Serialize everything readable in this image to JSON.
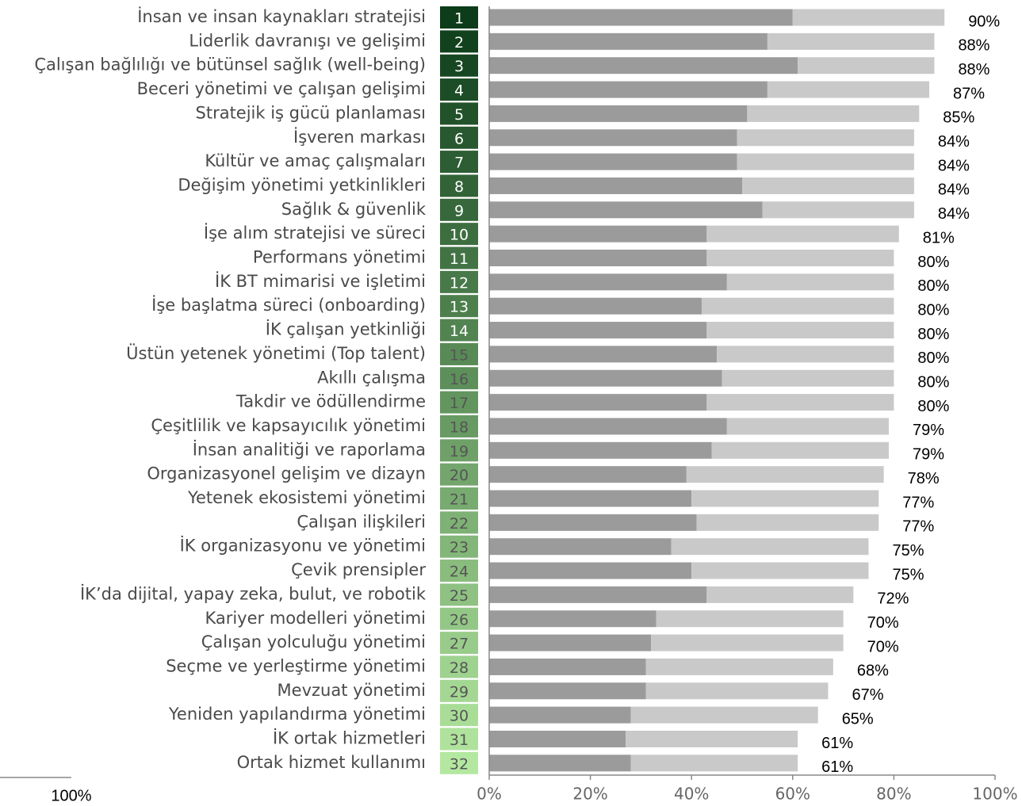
{
  "chart_data": {
    "type": "stacked_barh",
    "categories": [
      "İnsan ve insan kaynakları stratejisi",
      "Liderlik davranışı ve gelişimi",
      "Çalışan bağlılığı ve bütünsel sağlık (well-being)",
      "Beceri yönetimi ve çalışan gelişimi",
      "Stratejik iş gücü planlaması",
      "İşveren markası",
      "Kültür ve amaç çalışmaları",
      "Değişim yönetimi yetkinlikleri",
      "Sağlık & güvenlik",
      "İşe alım stratejisi ve süreci",
      "Performans yönetimi",
      "İK BT mimarisi ve işletimi",
      "İşe başlatma süreci (onboarding)",
      "İK çalışan yetkinliği",
      "Üstün yetenek yönetimi (Top talent)",
      "Akıllı çalışma",
      "Takdir ve ödüllendirme",
      "Çeşitlilik ve kapsayıcılık yönetimi",
      "İnsan analitiği ve raporlama",
      "Organizasyonel gelişim ve dizayn",
      "Yetenek ekosistemi yönetimi",
      "Çalışan ilişkileri",
      "İK organizasyonu ve yönetimi",
      "Çevik prensipler",
      "İK’da dijital, yapay zeka, bulut, ve robotik",
      "Kariyer modelleri yönetimi",
      "Çalışan yolculuğu yönetimi",
      "Seçme ve yerleştirme yönetimi",
      "Mevzuat yönetimi",
      "Yeniden yapılandırma yönetimi",
      "İK ortak hizmetleri",
      "Ortak hizmet kullanımı"
    ],
    "ranks": [
      1,
      2,
      3,
      4,
      5,
      6,
      7,
      8,
      9,
      10,
      11,
      12,
      13,
      14,
      15,
      16,
      17,
      18,
      19,
      20,
      21,
      22,
      23,
      24,
      25,
      26,
      27,
      28,
      29,
      30,
      31,
      32
    ],
    "series": [
      {
        "color": "#9b9b9b",
        "values": [
          60,
          55,
          61,
          55,
          51,
          49,
          49,
          50,
          54,
          43,
          43,
          47,
          42,
          43,
          45,
          46,
          43,
          47,
          44,
          39,
          40,
          41,
          36,
          40,
          43,
          33,
          32,
          31,
          31,
          28,
          27,
          28
        ]
      },
      {
        "color": "#c9c9c9",
        "values": [
          30,
          33,
          27,
          32,
          34,
          35,
          35,
          34,
          30,
          38,
          37,
          33,
          38,
          37,
          35,
          34,
          37,
          32,
          35,
          39,
          37,
          36,
          39,
          35,
          29,
          37,
          38,
          37,
          36,
          37,
          34,
          33
        ]
      }
    ],
    "totals": {
      "values": [
        90,
        88,
        88,
        87,
        85,
        84,
        84,
        84,
        84,
        81,
        80,
        80,
        80,
        80,
        80,
        80,
        80,
        79,
        79,
        78,
        77,
        77,
        75,
        75,
        72,
        70,
        70,
        68,
        67,
        65,
        61,
        61
      ],
      "value_labels": [
        "90%",
        "88%",
        "88%",
        "87%",
        "85%",
        "84%",
        "84%",
        "84%",
        "84%",
        "81%",
        "80%",
        "80%",
        "80%",
        "80%",
        "80%",
        "80%",
        "80%",
        "79%",
        "79%",
        "78%",
        "77%",
        "77%",
        "75%",
        "75%",
        "72%",
        "70%",
        "70%",
        "68%",
        "67%",
        "65%",
        "61%",
        "61%"
      ]
    },
    "xlim": [
      0,
      100
    ],
    "xticks": [
      {
        "value": 0,
        "label": "0%"
      },
      {
        "value": 20,
        "label": "20%"
      },
      {
        "value": 40,
        "label": "40%"
      },
      {
        "value": 60,
        "label": "60%"
      },
      {
        "value": 80,
        "label": "80%"
      },
      {
        "value": 100,
        "label": "100%"
      }
    ],
    "annotation": "100%"
  }
}
